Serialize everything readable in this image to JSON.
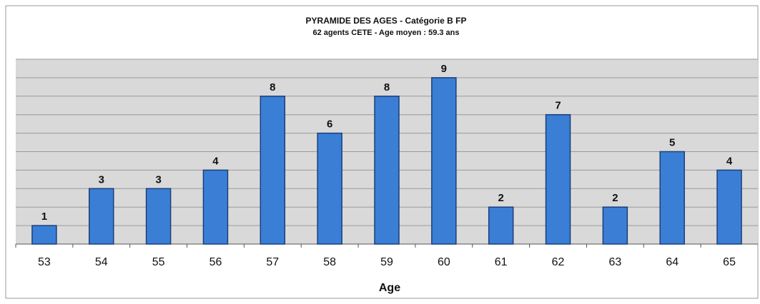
{
  "chart_data": {
    "type": "bar",
    "title": "PYRAMIDE DES AGES - Catégorie B FP",
    "subtitle": "62 agents CETE - Age moyen : 59.3 ans",
    "x_label": "Age",
    "categories": [
      "53",
      "54",
      "55",
      "56",
      "57",
      "58",
      "59",
      "60",
      "61",
      "62",
      "63",
      "64",
      "65"
    ],
    "values": [
      1,
      3,
      3,
      4,
      8,
      6,
      8,
      9,
      2,
      7,
      2,
      5,
      4
    ],
    "color": "#3a7fd5",
    "ylim": [
      0,
      10
    ],
    "yticks": [
      0,
      1,
      2,
      3,
      4,
      5,
      6,
      7,
      8,
      9,
      10
    ],
    "grid": true
  }
}
